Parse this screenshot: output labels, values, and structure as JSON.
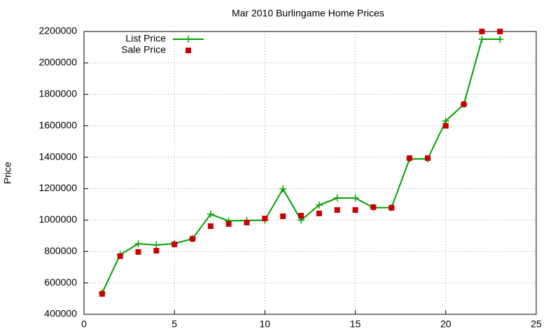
{
  "chart_data": {
    "type": "line",
    "title": "Mar 2010 Burlingame Home Prices",
    "y_label": "Price",
    "x": [
      1,
      2,
      3,
      4,
      5,
      6,
      7,
      8,
      9,
      10,
      11,
      12,
      13,
      14,
      15,
      16,
      17,
      18,
      19,
      20,
      21,
      22,
      23
    ],
    "series": [
      {
        "name": "List Price",
        "color": "#00a000",
        "style": "linespoints",
        "values": [
          535000,
          779000,
          849000,
          841000,
          850000,
          881000,
          1037000,
          995000,
          997000,
          999000,
          1198000,
          999000,
          1095000,
          1140000,
          1140000,
          1079000,
          1079000,
          1389000,
          1389000,
          1630000,
          1737000,
          2151000,
          2151000
        ]
      },
      {
        "name": "Sale Price",
        "color": "#cc0000",
        "style": "points",
        "values": [
          530000,
          770000,
          797000,
          805000,
          845000,
          880000,
          961000,
          975000,
          984000,
          1010000,
          1024000,
          1028000,
          1042000,
          1064000,
          1064000,
          1082000,
          1078000,
          1394000,
          1394000,
          1600000,
          1737000,
          2200000,
          2200000
        ]
      }
    ],
    "xlim": [
      0,
      25
    ],
    "xticks": [
      0,
      5,
      10,
      15,
      20,
      25
    ],
    "ylim": [
      400000,
      2200000
    ],
    "yticks": [
      400000,
      600000,
      800000,
      1000000,
      1200000,
      1400000,
      1600000,
      1800000,
      2000000,
      2200000
    ],
    "grid": true,
    "legend": "upper left"
  }
}
